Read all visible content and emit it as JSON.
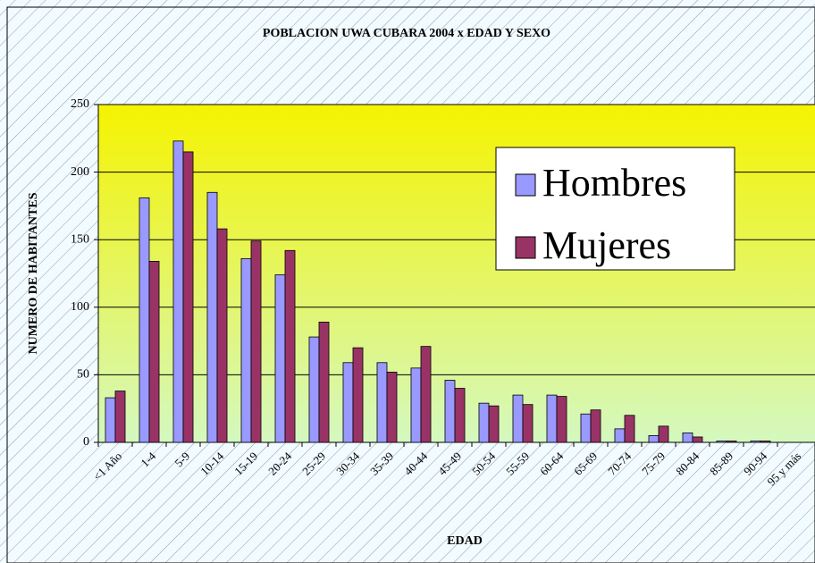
{
  "chart_data": {
    "type": "bar",
    "title": "POBLACION UWA CUBARA 2004 x EDAD Y SEXO",
    "x_label": "EDAD",
    "y_label": "NUMERO DE HABITANTES",
    "categories": [
      "<1 Año",
      "1-4",
      "5-9",
      "10-14",
      "15-19",
      "20-24",
      "25-29",
      "30-34",
      "35-39",
      "40-44",
      "45-49",
      "50-54",
      "55-59",
      "60-64",
      "65-69",
      "70-74",
      "75-79",
      "80-84",
      "85-89",
      "90-94",
      "95 y más"
    ],
    "series": [
      {
        "name": "Hombres",
        "color": "#9999ff",
        "values": [
          33,
          181,
          223,
          185,
          136,
          124,
          78,
          59,
          59,
          55,
          46,
          29,
          35,
          35,
          21,
          10,
          5,
          7,
          1,
          1,
          0
        ]
      },
      {
        "name": "Mujeres",
        "color": "#993366",
        "values": [
          38,
          134,
          215,
          158,
          149,
          142,
          89,
          70,
          52,
          71,
          40,
          27,
          28,
          34,
          24,
          20,
          12,
          4,
          1,
          1,
          0
        ]
      }
    ],
    "ylim": [
      0,
      250
    ],
    "yticks": [
      0,
      50,
      100,
      150,
      200,
      250
    ],
    "grid": true
  }
}
